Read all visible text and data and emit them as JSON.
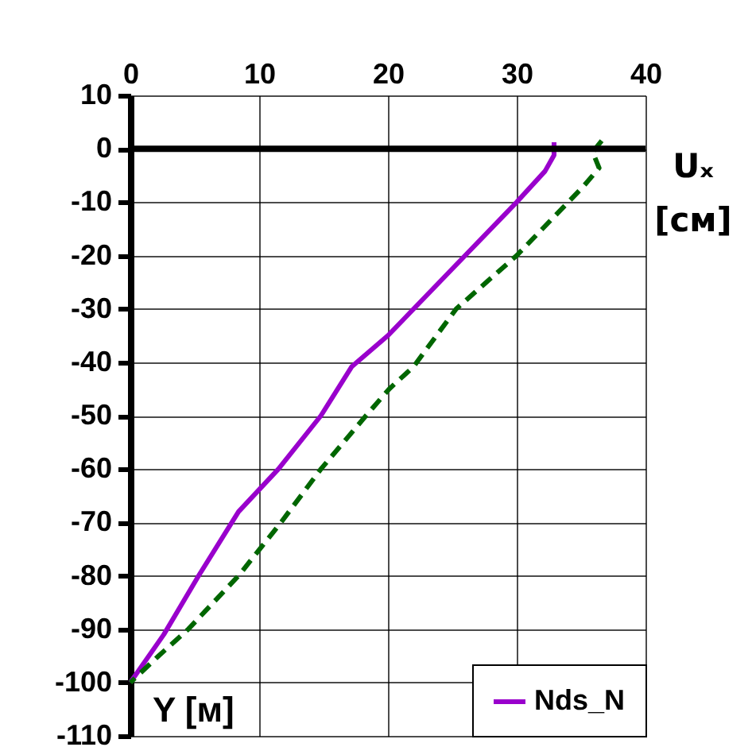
{
  "chart_data": {
    "type": "line",
    "xlabel": "Uₓ [см]",
    "ylabel": "Y [м]",
    "xlim": [
      0,
      40
    ],
    "xticks": [
      0,
      10,
      20,
      30,
      40
    ],
    "ylim": [
      -110,
      10
    ],
    "yticks": [
      10,
      0,
      -10,
      -20,
      -30,
      -40,
      -50,
      -60,
      -70,
      -80,
      -90,
      -100,
      -110
    ],
    "grid": true,
    "legend": "bottom right",
    "marker": "none",
    "ref_lines": [
      {
        "axis": "y",
        "value": 0,
        "color": "#000000"
      }
    ],
    "series": [
      {
        "name": "Nds_N",
        "color": "#9900cc",
        "line_style": "solid",
        "x": [
          32.9,
          32.9,
          32.2,
          30,
          25,
          20,
          17.2,
          14.8,
          11.5,
          8.4,
          5.3,
          2.6,
          0
        ],
        "values": [
          1.2,
          -1.2,
          -4.2,
          -10,
          -22.5,
          -35,
          -40.8,
          -50,
          -60,
          -68,
          -80,
          -91,
          -100
        ]
      },
      {
        "color": "#006600",
        "line_style": "dashed",
        "x": [
          36.6,
          35.9,
          36.4,
          35.2,
          30,
          25.3,
          22,
          20.1,
          18.3,
          14.8,
          11.7,
          8.4,
          4.5,
          2.2,
          0
        ],
        "values": [
          1.5,
          -0.6,
          -3.6,
          -7,
          -20,
          -30,
          -40.8,
          -45,
          -50,
          -60,
          -70,
          -80,
          -90,
          -95,
          -100
        ]
      }
    ]
  }
}
